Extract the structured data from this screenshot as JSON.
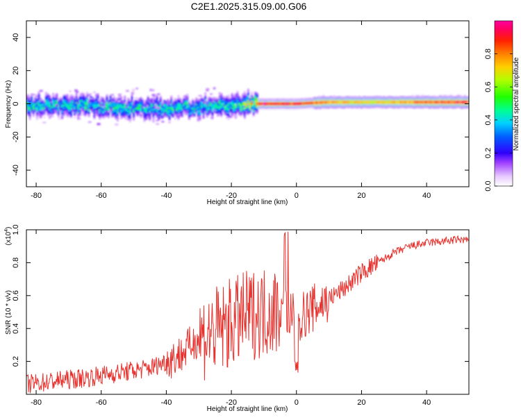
{
  "title": "C2E1.2025.315.09.00.G06",
  "chart_data": [
    {
      "type": "heatmap",
      "xlabel": "Height of straight line (km)",
      "ylabel": "Frequency (Hz)",
      "xlim": [
        -83,
        53
      ],
      "ylim": [
        -50,
        50
      ],
      "xticks": [
        -80,
        -60,
        -40,
        -20,
        0,
        20,
        40
      ],
      "yticks": [
        -40,
        -20,
        0,
        20,
        40
      ],
      "ytick_labels": [
        "-40",
        "-20",
        "0",
        "20",
        "40"
      ],
      "colorbar": {
        "label": "Normalized spectral amplitude",
        "range": [
          0,
          1
        ],
        "ticks": [
          0.0,
          0.2,
          0.4,
          0.6,
          0.8
        ],
        "tick_labels": [
          "0.0",
          "0.2",
          "0.4",
          "0.6",
          "0.8"
        ]
      },
      "ridge": {
        "x": [
          -83,
          -75,
          -65,
          -55,
          -45,
          -40,
          -35,
          -30,
          -25,
          -20,
          -15,
          -10,
          -5,
          0,
          10,
          20,
          30,
          40,
          53
        ],
        "freq": [
          -1,
          -1,
          -1,
          -2,
          -3,
          -3,
          -2,
          -2,
          -1,
          -1,
          0,
          0,
          0,
          0,
          1,
          1,
          1,
          1,
          1
        ],
        "amplitude": [
          0.5,
          0.45,
          0.5,
          0.5,
          0.45,
          0.5,
          0.5,
          0.45,
          0.5,
          0.5,
          0.7,
          0.95,
          0.9,
          0.9,
          0.8,
          0.7,
          0.75,
          0.85,
          0.9
        ]
      }
    },
    {
      "type": "line",
      "xlabel": "Height of straight line (km)",
      "ylabel": "SNR (10 * v/v)",
      "y_multiplier": "(x10",
      "y_multiplier_exp": "4",
      "y_multiplier_close": ")",
      "xlim": [
        -83,
        53
      ],
      "ylim": [
        0,
        1.0
      ],
      "xticks": [
        -80,
        -60,
        -40,
        -20,
        0,
        20,
        40
      ],
      "yticks": [
        0.2,
        0.4,
        0.6,
        0.8,
        1.0
      ],
      "ytick_labels": [
        "0.2",
        "0.4",
        "0.6",
        "0.8",
        "1.0"
      ],
      "series": [
        {
          "color": "#e8322e",
          "x": [
            -83,
            -75,
            -65,
            -55,
            -45,
            -40,
            -35,
            -30,
            -25,
            -20,
            -15,
            -10,
            -5,
            -3,
            0,
            5,
            10,
            15,
            20,
            25,
            30,
            35,
            40,
            45,
            50,
            53
          ],
          "y": [
            0.06,
            0.08,
            0.1,
            0.13,
            0.16,
            0.2,
            0.25,
            0.35,
            0.38,
            0.43,
            0.48,
            0.5,
            0.52,
            0.5,
            0.45,
            0.52,
            0.58,
            0.65,
            0.74,
            0.8,
            0.86,
            0.9,
            0.92,
            0.93,
            0.94,
            0.94
          ]
        }
      ]
    }
  ]
}
